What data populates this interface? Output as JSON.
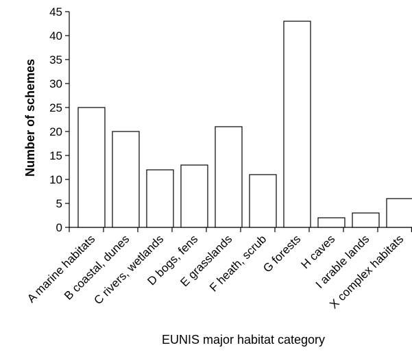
{
  "chart_data": {
    "type": "bar",
    "title": "",
    "xlabel": "EUNIS major habitat category",
    "ylabel": "Number of schemes",
    "ylim": [
      0,
      45
    ],
    "yticks": [
      0,
      5,
      10,
      15,
      20,
      25,
      30,
      35,
      40,
      45
    ],
    "grid": false,
    "categories": [
      "A marine habitats",
      "B coastal, dunes",
      "C rivers, wetlands",
      "D bogs, fens",
      "E grasslands",
      "F heath, scrub",
      "G forests",
      "H caves",
      "I arable lands",
      "X complex habitats"
    ],
    "values": [
      25,
      20,
      12,
      13,
      21,
      11,
      43,
      2,
      3,
      6
    ],
    "colors": {
      "bar_fill": "#ffffff",
      "bar_stroke": "#000000"
    }
  }
}
